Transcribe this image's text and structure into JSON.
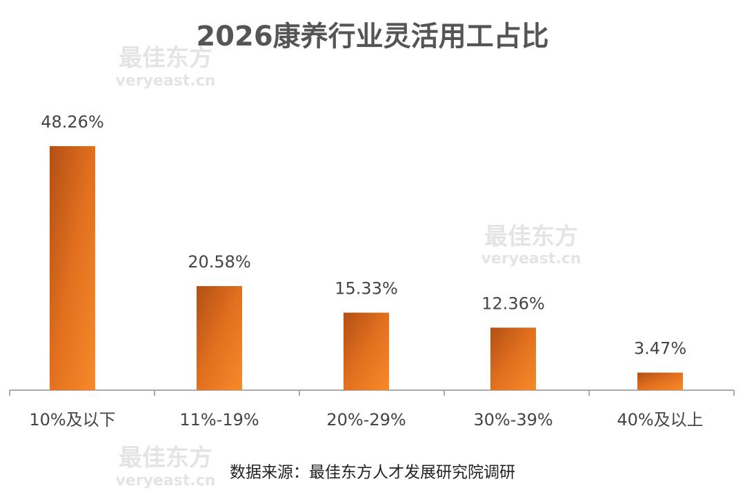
{
  "chart_data": {
    "type": "bar",
    "title": "2026康养行业灵活用工占比",
    "categories": [
      "10%及以下",
      "11%-19%",
      "20%-29%",
      "30%-39%",
      "40%及以上"
    ],
    "values": [
      48.26,
      20.58,
      15.33,
      12.36,
      3.47
    ],
    "value_labels": [
      "48.26%",
      "20.58%",
      "15.33%",
      "12.36%",
      "3.47%"
    ],
    "color": "#e2701f",
    "source": "数据来源：最佳东方人才发展研究院调研",
    "watermark_text": "最佳东方",
    "watermark_url": "veryeast.cn"
  }
}
